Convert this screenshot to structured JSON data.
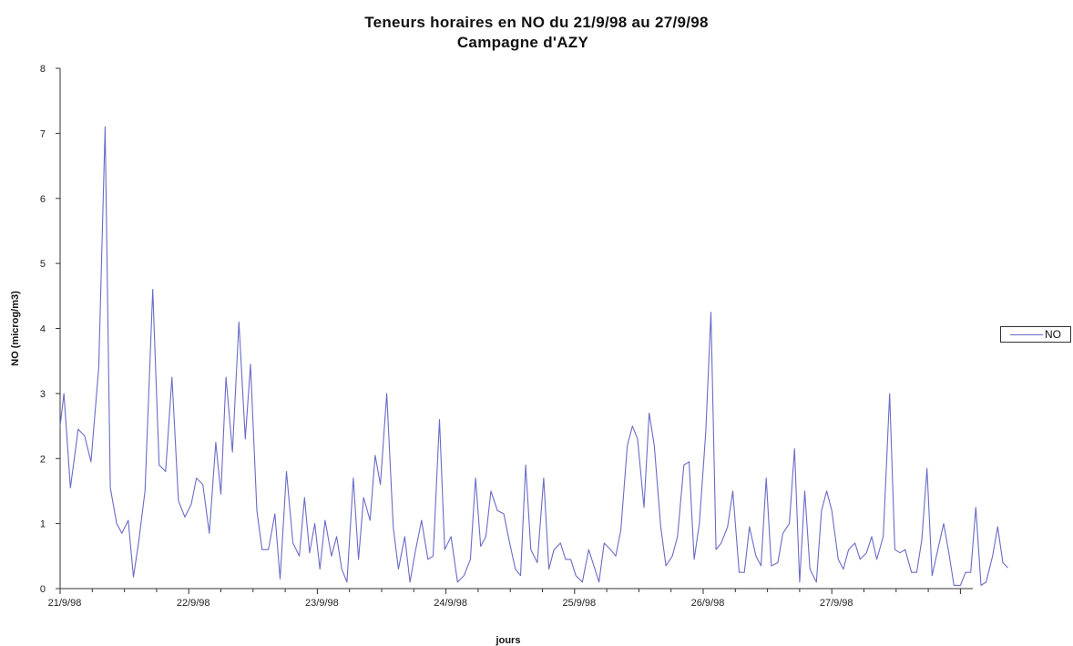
{
  "chart_data": {
    "type": "line",
    "title": "Teneurs horaires en NO du 21/9/98 au 27/9/98",
    "subtitle": "Campagne d'AZY",
    "xlabel": "jours",
    "ylabel": "NO (microg/m3)",
    "ylim": [
      0,
      8
    ],
    "y_ticks": [
      0,
      1,
      2,
      3,
      4,
      5,
      6,
      7,
      8
    ],
    "x_categories": [
      "21/9/98",
      "22/9/98",
      "23/9/98",
      "24/9/98",
      "25/9/98",
      "26/9/98",
      "27/9/98"
    ],
    "x_range_days": [
      0,
      7.4
    ],
    "grid": false,
    "legend_position": "right",
    "line_color": "#6b6bc8",
    "series": [
      {
        "name": "NO",
        "points": [
          [
            0.0,
            2.5
          ],
          [
            0.03,
            3.0
          ],
          [
            0.08,
            1.55
          ],
          [
            0.14,
            2.45
          ],
          [
            0.19,
            2.35
          ],
          [
            0.24,
            1.95
          ],
          [
            0.3,
            3.4
          ],
          [
            0.35,
            7.1
          ],
          [
            0.39,
            1.55
          ],
          [
            0.44,
            1.0
          ],
          [
            0.48,
            0.85
          ],
          [
            0.53,
            1.05
          ],
          [
            0.57,
            0.18
          ],
          [
            0.61,
            0.7
          ],
          [
            0.66,
            1.5
          ],
          [
            0.72,
            4.6
          ],
          [
            0.77,
            1.9
          ],
          [
            0.82,
            1.8
          ],
          [
            0.87,
            3.25
          ],
          [
            0.92,
            1.35
          ],
          [
            0.97,
            1.1
          ],
          [
            1.02,
            1.3
          ],
          [
            1.06,
            1.7
          ],
          [
            1.11,
            1.6
          ],
          [
            1.16,
            0.85
          ],
          [
            1.21,
            2.25
          ],
          [
            1.25,
            1.45
          ],
          [
            1.29,
            3.25
          ],
          [
            1.34,
            2.1
          ],
          [
            1.39,
            4.1
          ],
          [
            1.44,
            2.3
          ],
          [
            1.48,
            3.45
          ],
          [
            1.53,
            1.2
          ],
          [
            1.57,
            0.6
          ],
          [
            1.62,
            0.6
          ],
          [
            1.67,
            1.15
          ],
          [
            1.71,
            0.15
          ],
          [
            1.76,
            1.8
          ],
          [
            1.81,
            0.7
          ],
          [
            1.86,
            0.5
          ],
          [
            1.9,
            1.4
          ],
          [
            1.94,
            0.55
          ],
          [
            1.98,
            1.0
          ],
          [
            2.02,
            0.3
          ],
          [
            2.06,
            1.05
          ],
          [
            2.11,
            0.5
          ],
          [
            2.15,
            0.8
          ],
          [
            2.19,
            0.3
          ],
          [
            2.23,
            0.1
          ],
          [
            2.28,
            1.7
          ],
          [
            2.32,
            0.45
          ],
          [
            2.36,
            1.4
          ],
          [
            2.41,
            1.05
          ],
          [
            2.45,
            2.05
          ],
          [
            2.49,
            1.6
          ],
          [
            2.54,
            3.0
          ],
          [
            2.59,
            0.95
          ],
          [
            2.63,
            0.3
          ],
          [
            2.68,
            0.8
          ],
          [
            2.72,
            0.1
          ],
          [
            2.76,
            0.55
          ],
          [
            2.81,
            1.05
          ],
          [
            2.86,
            0.45
          ],
          [
            2.9,
            0.5
          ],
          [
            2.95,
            2.6
          ],
          [
            2.99,
            0.6
          ],
          [
            3.04,
            0.8
          ],
          [
            3.09,
            0.1
          ],
          [
            3.14,
            0.2
          ],
          [
            3.19,
            0.45
          ],
          [
            3.23,
            1.7
          ],
          [
            3.27,
            0.65
          ],
          [
            3.31,
            0.8
          ],
          [
            3.35,
            1.5
          ],
          [
            3.4,
            1.2
          ],
          [
            3.45,
            1.15
          ],
          [
            3.49,
            0.75
          ],
          [
            3.54,
            0.3
          ],
          [
            3.58,
            0.2
          ],
          [
            3.62,
            1.9
          ],
          [
            3.66,
            0.6
          ],
          [
            3.71,
            0.4
          ],
          [
            3.76,
            1.7
          ],
          [
            3.8,
            0.3
          ],
          [
            3.84,
            0.6
          ],
          [
            3.89,
            0.7
          ],
          [
            3.93,
            0.45
          ],
          [
            3.97,
            0.45
          ],
          [
            4.01,
            0.2
          ],
          [
            4.06,
            0.1
          ],
          [
            4.11,
            0.6
          ],
          [
            4.15,
            0.35
          ],
          [
            4.19,
            0.1
          ],
          [
            4.23,
            0.7
          ],
          [
            4.28,
            0.6
          ],
          [
            4.32,
            0.5
          ],
          [
            4.36,
            0.9
          ],
          [
            4.41,
            2.2
          ],
          [
            4.45,
            2.5
          ],
          [
            4.49,
            2.3
          ],
          [
            4.54,
            1.25
          ],
          [
            4.58,
            2.7
          ],
          [
            4.62,
            2.2
          ],
          [
            4.67,
            0.95
          ],
          [
            4.71,
            0.35
          ],
          [
            4.76,
            0.5
          ],
          [
            4.8,
            0.8
          ],
          [
            4.85,
            1.9
          ],
          [
            4.89,
            1.95
          ],
          [
            4.93,
            0.45
          ],
          [
            4.97,
            1.0
          ],
          [
            5.02,
            2.4
          ],
          [
            5.06,
            4.25
          ],
          [
            5.1,
            0.6
          ],
          [
            5.14,
            0.7
          ],
          [
            5.19,
            0.95
          ],
          [
            5.23,
            1.5
          ],
          [
            5.28,
            0.25
          ],
          [
            5.32,
            0.25
          ],
          [
            5.36,
            0.95
          ],
          [
            5.41,
            0.5
          ],
          [
            5.45,
            0.35
          ],
          [
            5.49,
            1.7
          ],
          [
            5.53,
            0.35
          ],
          [
            5.58,
            0.4
          ],
          [
            5.62,
            0.85
          ],
          [
            5.67,
            1.0
          ],
          [
            5.71,
            2.15
          ],
          [
            5.75,
            0.1
          ],
          [
            5.79,
            1.5
          ],
          [
            5.83,
            0.3
          ],
          [
            5.88,
            0.1
          ],
          [
            5.92,
            1.2
          ],
          [
            5.96,
            1.5
          ],
          [
            6.0,
            1.2
          ],
          [
            6.05,
            0.45
          ],
          [
            6.09,
            0.3
          ],
          [
            6.13,
            0.6
          ],
          [
            6.18,
            0.7
          ],
          [
            6.22,
            0.45
          ],
          [
            6.27,
            0.55
          ],
          [
            6.31,
            0.8
          ],
          [
            6.35,
            0.45
          ],
          [
            6.4,
            0.8
          ],
          [
            6.45,
            3.0
          ],
          [
            6.49,
            0.6
          ],
          [
            6.53,
            0.55
          ],
          [
            6.57,
            0.6
          ],
          [
            6.62,
            0.25
          ],
          [
            6.66,
            0.25
          ],
          [
            6.7,
            0.75
          ],
          [
            6.74,
            1.85
          ],
          [
            6.78,
            0.2
          ],
          [
            6.83,
            0.65
          ],
          [
            6.87,
            1.0
          ],
          [
            6.91,
            0.55
          ],
          [
            6.95,
            0.05
          ],
          [
            7.0,
            0.05
          ],
          [
            7.04,
            0.25
          ],
          [
            7.08,
            0.25
          ],
          [
            7.12,
            1.25
          ],
          [
            7.16,
            0.05
          ],
          [
            7.2,
            0.1
          ],
          [
            7.25,
            0.5
          ],
          [
            7.29,
            0.95
          ],
          [
            7.33,
            0.4
          ],
          [
            7.37,
            0.32
          ]
        ]
      }
    ]
  }
}
